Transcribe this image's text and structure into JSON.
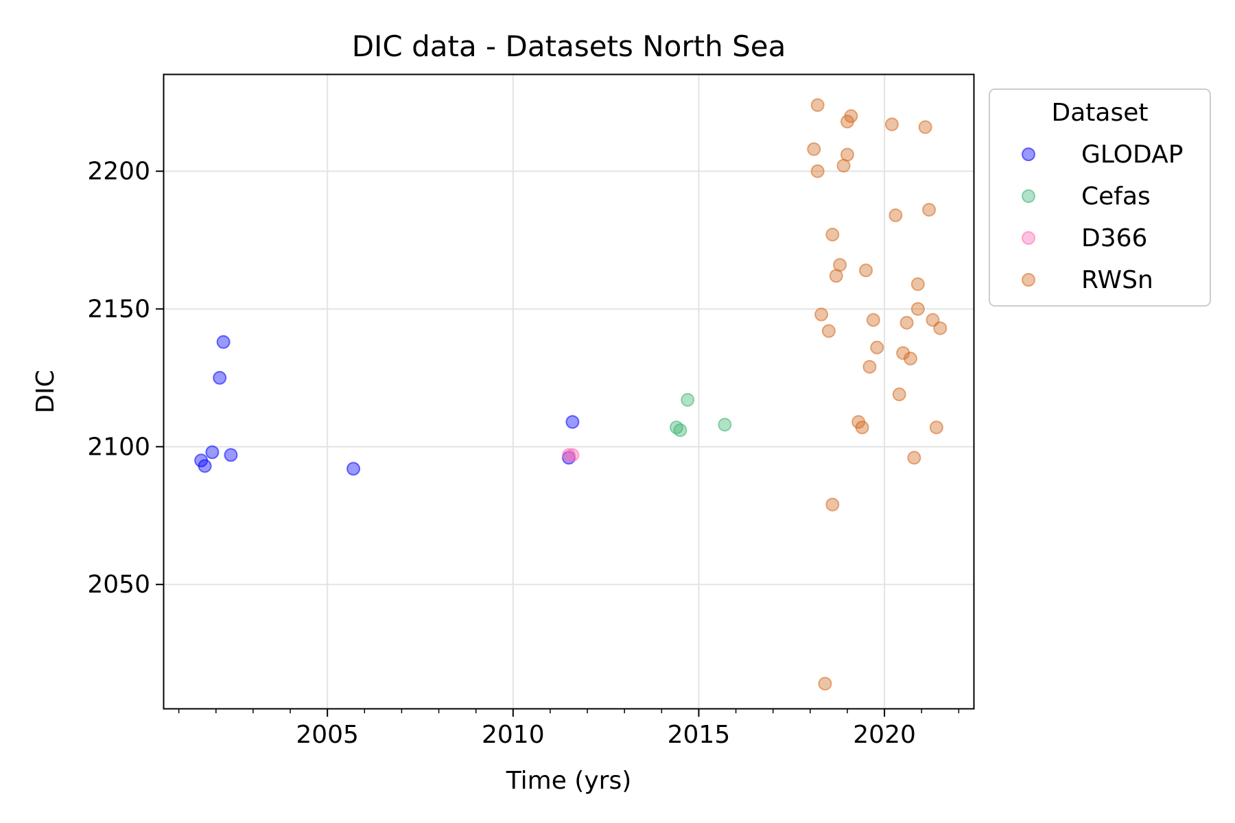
{
  "chart_data": {
    "type": "scatter",
    "title": "DIC data - Datasets North Sea",
    "xlabel": "Time (yrs)",
    "ylabel": "DIC",
    "xlim": [
      2000.6,
      2022.4
    ],
    "ylim": [
      2005,
      2235
    ],
    "xticks": [
      2005,
      2010,
      2015,
      2020
    ],
    "yticks": [
      2050,
      2100,
      2150,
      2200
    ],
    "grid": true,
    "legend": {
      "title": "Dataset",
      "placement": "outside-right-top"
    },
    "series": [
      {
        "name": "GLODAP",
        "color": "#0000ff",
        "points": [
          {
            "x": 2001.6,
            "y": 2095
          },
          {
            "x": 2001.7,
            "y": 2093
          },
          {
            "x": 2001.9,
            "y": 2098
          },
          {
            "x": 2002.1,
            "y": 2125
          },
          {
            "x": 2002.2,
            "y": 2138
          },
          {
            "x": 2002.4,
            "y": 2097
          },
          {
            "x": 2005.7,
            "y": 2092
          },
          {
            "x": 2011.5,
            "y": 2096
          },
          {
            "x": 2011.6,
            "y": 2109
          }
        ]
      },
      {
        "name": "Cefas",
        "color": "#3cb371",
        "points": [
          {
            "x": 2014.4,
            "y": 2107
          },
          {
            "x": 2014.5,
            "y": 2106
          },
          {
            "x": 2014.7,
            "y": 2117
          },
          {
            "x": 2015.7,
            "y": 2108
          }
        ]
      },
      {
        "name": "D366",
        "color": "#ff69b4",
        "points": [
          {
            "x": 2011.5,
            "y": 2097
          },
          {
            "x": 2011.6,
            "y": 2097
          }
        ]
      },
      {
        "name": "RWSn",
        "color": "#d2691e",
        "points": [
          {
            "x": 2018.1,
            "y": 2208
          },
          {
            "x": 2018.2,
            "y": 2224
          },
          {
            "x": 2018.2,
            "y": 2200
          },
          {
            "x": 2018.3,
            "y": 2148
          },
          {
            "x": 2018.4,
            "y": 2014
          },
          {
            "x": 2018.5,
            "y": 2142
          },
          {
            "x": 2018.6,
            "y": 2177
          },
          {
            "x": 2018.6,
            "y": 2079
          },
          {
            "x": 2018.7,
            "y": 2162
          },
          {
            "x": 2018.8,
            "y": 2166
          },
          {
            "x": 2018.9,
            "y": 2202
          },
          {
            "x": 2019.0,
            "y": 2218
          },
          {
            "x": 2019.0,
            "y": 2206
          },
          {
            "x": 2019.1,
            "y": 2220
          },
          {
            "x": 2019.3,
            "y": 2109
          },
          {
            "x": 2019.4,
            "y": 2107
          },
          {
            "x": 2019.5,
            "y": 2164
          },
          {
            "x": 2019.6,
            "y": 2129
          },
          {
            "x": 2019.7,
            "y": 2146
          },
          {
            "x": 2019.8,
            "y": 2136
          },
          {
            "x": 2020.2,
            "y": 2217
          },
          {
            "x": 2020.3,
            "y": 2184
          },
          {
            "x": 2020.4,
            "y": 2119
          },
          {
            "x": 2020.5,
            "y": 2134
          },
          {
            "x": 2020.6,
            "y": 2145
          },
          {
            "x": 2020.7,
            "y": 2132
          },
          {
            "x": 2020.8,
            "y": 2096
          },
          {
            "x": 2020.9,
            "y": 2150
          },
          {
            "x": 2020.9,
            "y": 2159
          },
          {
            "x": 2021.1,
            "y": 2216
          },
          {
            "x": 2021.2,
            "y": 2186
          },
          {
            "x": 2021.3,
            "y": 2146
          },
          {
            "x": 2021.4,
            "y": 2107
          },
          {
            "x": 2021.5,
            "y": 2143
          }
        ]
      }
    ]
  }
}
